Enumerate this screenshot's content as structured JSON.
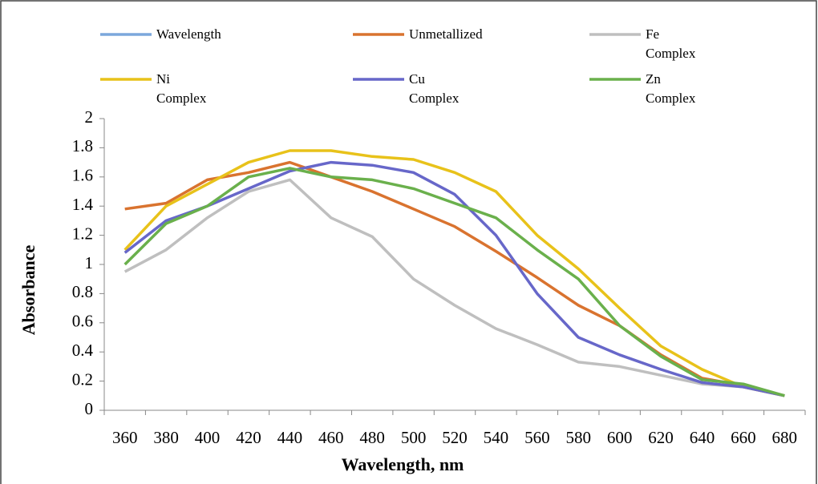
{
  "chart_data": {
    "type": "line",
    "x_label": "Wavelength, nm",
    "y_label": "Absorbance",
    "categories": [
      "360",
      "380",
      "400",
      "420",
      "440",
      "460",
      "480",
      "500",
      "520",
      "540",
      "560",
      "580",
      "600",
      "620",
      "640",
      "660",
      "680"
    ],
    "ylim": [
      0,
      2
    ],
    "yticks": [
      0,
      0.2,
      0.4,
      0.6,
      0.8,
      1,
      1.2,
      1.4,
      1.6,
      1.8,
      2
    ],
    "series": [
      {
        "name": "Wavelength",
        "color": "#7ba7dc",
        "values": [
          null,
          null,
          null,
          null,
          null,
          null,
          null,
          null,
          null,
          null,
          null,
          null,
          null,
          null,
          null,
          null,
          null
        ]
      },
      {
        "name": "Unmetallized",
        "color": "#d9732f",
        "values": [
          1.38,
          1.42,
          1.58,
          1.63,
          1.7,
          1.6,
          1.5,
          1.38,
          1.26,
          1.09,
          0.91,
          0.72,
          0.58,
          0.38,
          0.22,
          0.17,
          0.1
        ]
      },
      {
        "name": "Fe Complex",
        "color": "#bfbfbf",
        "values": [
          0.95,
          1.1,
          1.32,
          1.5,
          1.58,
          1.32,
          1.19,
          0.9,
          0.72,
          0.56,
          0.45,
          0.33,
          0.3,
          0.24,
          0.18,
          0.16,
          0.1
        ]
      },
      {
        "name": "Ni Complex",
        "color": "#e8c21a",
        "values": [
          1.1,
          1.4,
          1.55,
          1.7,
          1.78,
          1.78,
          1.74,
          1.72,
          1.63,
          1.5,
          1.2,
          0.97,
          0.7,
          0.44,
          0.28,
          0.16,
          0.1
        ]
      },
      {
        "name": "Cu Complex",
        "color": "#6767c9",
        "values": [
          1.08,
          1.3,
          1.4,
          1.52,
          1.64,
          1.7,
          1.68,
          1.63,
          1.48,
          1.2,
          0.8,
          0.5,
          0.38,
          0.28,
          0.19,
          0.16,
          0.1
        ]
      },
      {
        "name": "Zn Complex",
        "color": "#6ab04c",
        "values": [
          1.0,
          1.28,
          1.4,
          1.6,
          1.66,
          1.6,
          1.58,
          1.52,
          1.42,
          1.32,
          1.1,
          0.9,
          0.58,
          0.37,
          0.21,
          0.18,
          0.1
        ]
      }
    ]
  }
}
